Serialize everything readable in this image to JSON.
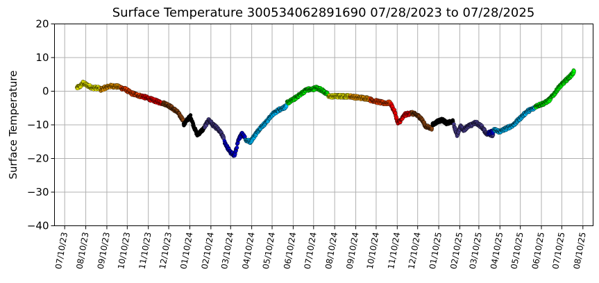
{
  "chart_data": {
    "type": "scatter",
    "title": "Surface Temperature 300534062891690  07/28/2023 to 07/28/2025",
    "ylabel": "Surface Temperature",
    "xlabel": "",
    "ylim": [
      -40,
      20
    ],
    "yticks": [
      "20",
      "10",
      "0",
      "−10",
      "−20",
      "−30",
      "−40"
    ],
    "ytick_values": [
      20,
      10,
      0,
      -10,
      -20,
      -30,
      -40
    ],
    "xlim": [
      "2023-06-25",
      "2025-08-25"
    ],
    "xticks": [
      "07/10/23",
      "08/10/23",
      "09/10/23",
      "10/10/23",
      "11/10/23",
      "12/10/23",
      "01/10/24",
      "02/10/24",
      "03/10/24",
      "04/10/24",
      "05/10/24",
      "06/10/24",
      "07/10/24",
      "08/10/24",
      "09/10/24",
      "10/10/24",
      "11/10/24",
      "12/10/24",
      "01/10/25",
      "02/10/25",
      "03/10/25",
      "04/10/25",
      "05/10/25",
      "06/10/25",
      "07/10/25",
      "08/10/25"
    ],
    "xtick_dates": [
      "2023-07-10",
      "2023-08-10",
      "2023-09-10",
      "2023-10-10",
      "2023-11-10",
      "2023-12-10",
      "2024-01-10",
      "2024-02-10",
      "2024-03-10",
      "2024-04-10",
      "2024-05-10",
      "2024-06-10",
      "2024-07-10",
      "2024-08-10",
      "2024-09-10",
      "2024-10-10",
      "2024-11-10",
      "2024-12-10",
      "2025-01-10",
      "2025-02-10",
      "2025-03-10",
      "2025-04-10",
      "2025-05-10",
      "2025-06-10",
      "2025-07-10",
      "2025-08-10"
    ],
    "grid": true,
    "series": [
      {
        "color": "#ffff00",
        "x": [
          "2023-07-28",
          "2023-08-02",
          "2023-08-06",
          "2023-08-10",
          "2023-08-15",
          "2023-08-20",
          "2023-08-25",
          "2023-08-31"
        ],
        "y": [
          1.0,
          1.5,
          2.5,
          2.0,
          1.5,
          1.0,
          1.0,
          0.8
        ]
      },
      {
        "color": "#ffa500",
        "x": [
          "2023-09-01",
          "2023-09-07",
          "2023-09-14",
          "2023-09-21",
          "2023-09-30"
        ],
        "y": [
          0.5,
          1.0,
          1.5,
          1.5,
          1.2
        ]
      },
      {
        "color": "#ff4500",
        "x": [
          "2023-10-01",
          "2023-10-08",
          "2023-10-15",
          "2023-10-22",
          "2023-10-31"
        ],
        "y": [
          1.0,
          0.5,
          -0.5,
          -1.0,
          -1.5
        ]
      },
      {
        "color": "#ff0000",
        "x": [
          "2023-11-01",
          "2023-11-08",
          "2023-11-15",
          "2023-11-22",
          "2023-11-30"
        ],
        "y": [
          -1.5,
          -2.0,
          -2.5,
          -3.0,
          -3.5
        ]
      },
      {
        "color": "#8b4513",
        "x": [
          "2023-12-01",
          "2023-12-08",
          "2023-12-15",
          "2023-12-22",
          "2023-12-31"
        ],
        "y": [
          -3.5,
          -4.0,
          -5.0,
          -6.0,
          -8.5
        ]
      },
      {
        "color": "#000000",
        "x": [
          "2024-01-01",
          "2024-01-06",
          "2024-01-11",
          "2024-01-16",
          "2024-01-21",
          "2024-01-26",
          "2024-01-31"
        ],
        "y": [
          -10.0,
          -8.5,
          -7.5,
          -10.5,
          -13.0,
          -12.0,
          -11.0
        ]
      },
      {
        "color": "#483d8b",
        "x": [
          "2024-02-01",
          "2024-02-07",
          "2024-02-13",
          "2024-02-19",
          "2024-02-25",
          "2024-02-29"
        ],
        "y": [
          -10.5,
          -8.5,
          -10.0,
          -11.0,
          -12.5,
          -14.0
        ]
      },
      {
        "color": "#0000cd",
        "x": [
          "2024-03-01",
          "2024-03-06",
          "2024-03-11",
          "2024-03-16",
          "2024-03-21",
          "2024-03-26",
          "2024-03-31"
        ],
        "y": [
          -15.0,
          -17.0,
          -18.5,
          -19.0,
          -15.0,
          -12.5,
          -13.5
        ]
      },
      {
        "color": "#00bfff",
        "x": [
          "2024-04-01",
          "2024-04-08",
          "2024-04-15",
          "2024-04-22",
          "2024-04-30",
          "2024-05-10",
          "2024-05-20",
          "2024-05-31"
        ],
        "y": [
          -14.5,
          -15.0,
          -13.0,
          -11.0,
          -9.5,
          -7.0,
          -5.5,
          -4.5
        ]
      },
      {
        "color": "#00ff00",
        "x": [
          "2024-06-01",
          "2024-06-10",
          "2024-06-20",
          "2024-06-30",
          "2024-07-07",
          "2024-07-14",
          "2024-07-21",
          "2024-07-31"
        ],
        "y": [
          -3.5,
          -2.5,
          -1.0,
          0.5,
          0.5,
          1.0,
          0.5,
          -1.0
        ]
      },
      {
        "color": "#ffff00",
        "x": [
          "2024-08-01",
          "2024-08-07",
          "2024-08-14",
          "2024-08-21",
          "2024-08-31"
        ],
        "y": [
          -1.5,
          -1.5,
          -1.5,
          -1.5,
          -1.5
        ]
      },
      {
        "color": "#ffa500",
        "x": [
          "2024-09-01",
          "2024-09-10",
          "2024-09-20",
          "2024-09-30"
        ],
        "y": [
          -1.5,
          -1.8,
          -2.0,
          -2.2
        ]
      },
      {
        "color": "#ff4500",
        "x": [
          "2024-10-01",
          "2024-10-10",
          "2024-10-20",
          "2024-10-31"
        ],
        "y": [
          -2.5,
          -3.0,
          -3.5,
          -3.5
        ]
      },
      {
        "color": "#ff0000",
        "x": [
          "2024-11-01",
          "2024-11-06",
          "2024-11-11",
          "2024-11-16",
          "2024-11-21",
          "2024-11-30"
        ],
        "y": [
          -4.0,
          -6.0,
          -9.5,
          -8.5,
          -7.0,
          -6.5
        ]
      },
      {
        "color": "#8b4513",
        "x": [
          "2024-12-01",
          "2024-12-08",
          "2024-12-15",
          "2024-12-22",
          "2024-12-31"
        ],
        "y": [
          -6.5,
          -7.0,
          -8.0,
          -10.5,
          -11.0
        ]
      },
      {
        "color": "#000000",
        "x": [
          "2025-01-01",
          "2025-01-08",
          "2025-01-15",
          "2025-01-22",
          "2025-01-31"
        ],
        "y": [
          -10.0,
          -9.0,
          -8.5,
          -9.5,
          -9.0
        ]
      },
      {
        "color": "#483d8b",
        "x": [
          "2025-02-01",
          "2025-02-06",
          "2025-02-11",
          "2025-02-16",
          "2025-02-21",
          "2025-02-28"
        ],
        "y": [
          -10.0,
          -13.0,
          -10.5,
          -11.5,
          -10.5,
          -10.0
        ]
      },
      {
        "color": "#483d8b",
        "x": [
          "2025-03-01",
          "2025-03-07",
          "2025-03-14",
          "2025-03-21",
          "2025-03-31"
        ],
        "y": [
          -9.5,
          -9.5,
          -10.5,
          -12.5,
          -13.0
        ]
      },
      {
        "color": "#0000cd",
        "x": [
          "2025-03-24",
          "2025-03-31"
        ],
        "y": [
          -12.5,
          -12.0
        ]
      },
      {
        "color": "#00bfff",
        "x": [
          "2025-04-01",
          "2025-04-10",
          "2025-04-20",
          "2025-04-30",
          "2025-05-10",
          "2025-05-20",
          "2025-05-31"
        ],
        "y": [
          -11.5,
          -12.0,
          -11.0,
          -10.0,
          -8.0,
          -6.0,
          -5.0
        ]
      },
      {
        "color": "#00ff00",
        "x": [
          "2025-06-01",
          "2025-06-08",
          "2025-06-15",
          "2025-06-22",
          "2025-06-30",
          "2025-07-05",
          "2025-07-10",
          "2025-07-15",
          "2025-07-20",
          "2025-07-25",
          "2025-07-28"
        ],
        "y": [
          -4.5,
          -4.0,
          -3.5,
          -2.5,
          -0.5,
          1.0,
          2.0,
          3.0,
          4.0,
          5.0,
          6.0
        ]
      }
    ]
  }
}
